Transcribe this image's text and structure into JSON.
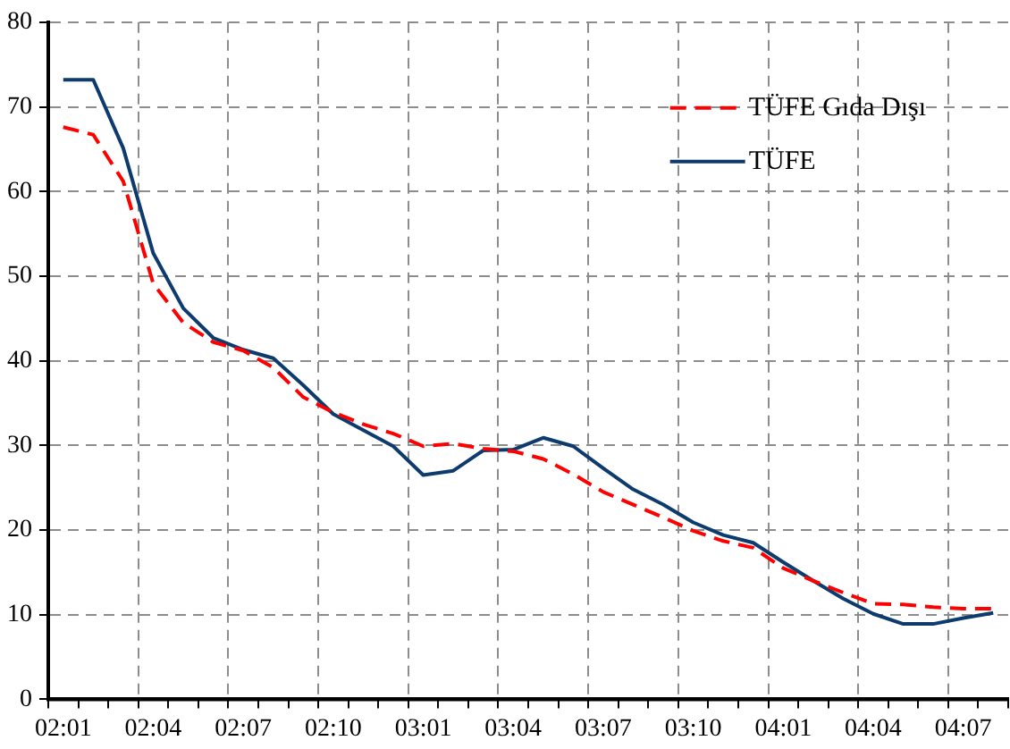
{
  "chart_data": {
    "type": "line",
    "categories": [
      "02:01",
      null,
      null,
      "02:04",
      null,
      null,
      "02:07",
      null,
      null,
      "02:10",
      null,
      null,
      "03:01",
      null,
      null,
      "03:04",
      null,
      null,
      "03:07",
      null,
      null,
      "03:10",
      null,
      null,
      "04:01",
      null,
      null,
      "04:04",
      null,
      null,
      "04:07",
      null
    ],
    "series": [
      {
        "name": "TÜFE Gıda Dışı",
        "color": "#ff0000",
        "line_style": "dashed",
        "values": [
          67.6,
          66.7,
          61.2,
          49.1,
          44.5,
          42.2,
          41.2,
          39.2,
          35.7,
          33.9,
          32.5,
          31.4,
          29.9,
          30.2,
          29.6,
          29.3,
          28.4,
          26.6,
          24.5,
          23.0,
          21.5,
          19.9,
          18.7,
          17.9,
          15.5,
          14.0,
          12.6,
          11.3,
          11.2,
          10.9,
          10.7,
          10.7
        ]
      },
      {
        "name": "TÜFE",
        "color": "#0d3b6e",
        "line_style": "solid",
        "values": [
          73.2,
          73.2,
          65.1,
          52.7,
          46.2,
          42.7,
          41.3,
          40.3,
          37.1,
          33.7,
          31.8,
          29.9,
          26.5,
          27.0,
          29.4,
          29.5,
          30.9,
          29.9,
          27.3,
          24.8,
          23.0,
          20.9,
          19.4,
          18.5,
          16.2,
          14.0,
          11.9,
          10.1,
          8.9,
          8.9,
          9.6,
          10.2
        ]
      }
    ],
    "ylim": [
      0,
      80
    ],
    "yticks": [
      0,
      10,
      20,
      30,
      40,
      50,
      60,
      70,
      80
    ],
    "grid": true,
    "legend": "top right",
    "marker": "none"
  }
}
